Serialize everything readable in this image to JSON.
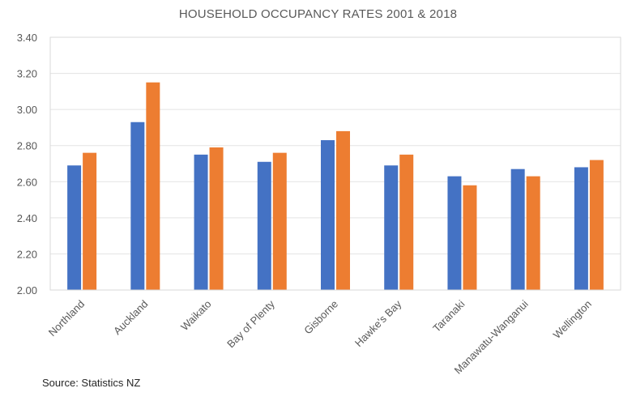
{
  "chart_data": {
    "type": "bar",
    "title": "HOUSEHOLD OCCUPANCY RATES 2001 & 2018",
    "xlabel": "",
    "ylabel": "",
    "ylim": [
      2.0,
      3.4
    ],
    "yticks": [
      "2.00",
      "2.20",
      "2.40",
      "2.60",
      "2.80",
      "3.00",
      "3.20",
      "3.40"
    ],
    "grid": true,
    "legend": "none",
    "categories": [
      "Northland",
      "Auckland",
      "Waikato",
      "Bay of Plenty",
      "Gisborne",
      "Hawke's Bay",
      "Taranaki",
      "Manawatu-Wanganui",
      "Wellington"
    ],
    "series": [
      {
        "color": "#4472C4",
        "values": [
          2.69,
          2.93,
          2.75,
          2.71,
          2.83,
          2.69,
          2.63,
          2.67,
          2.68
        ]
      },
      {
        "color": "#ED7D31",
        "values": [
          2.76,
          3.15,
          2.79,
          2.76,
          2.88,
          2.75,
          2.58,
          2.63,
          2.72
        ]
      }
    ]
  },
  "source": "Source: Statistics NZ"
}
